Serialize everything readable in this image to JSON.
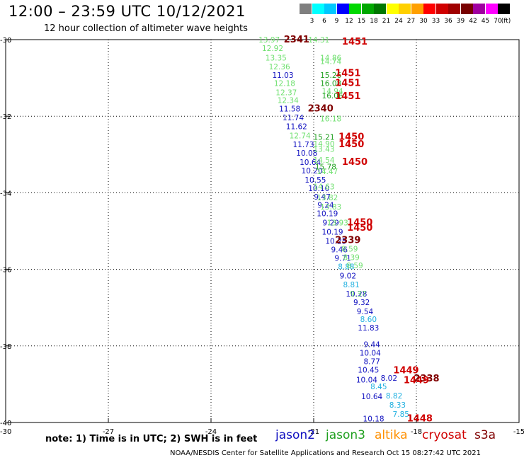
{
  "header": {
    "title": "12:00 – 23:59 UTC 10/12/2021",
    "subtitle": "12 hour collection of altimeter wave heights"
  },
  "colorbar": {
    "unit": "(ft)",
    "items": [
      {
        "label": "",
        "color": "#7f7f7f"
      },
      {
        "label": "3",
        "color": "#00ffff"
      },
      {
        "label": "6",
        "color": "#00c8ff"
      },
      {
        "label": "9",
        "color": "#0000ff"
      },
      {
        "label": "12",
        "color": "#00d800"
      },
      {
        "label": "15",
        "color": "#00a800"
      },
      {
        "label": "18",
        "color": "#007800"
      },
      {
        "label": "21",
        "color": "#ffff00"
      },
      {
        "label": "24",
        "color": "#ffd000"
      },
      {
        "label": "27",
        "color": "#ffa000"
      },
      {
        "label": "30",
        "color": "#ff0000"
      },
      {
        "label": "33",
        "color": "#d00000"
      },
      {
        "label": "36",
        "color": "#a00000"
      },
      {
        "label": "39",
        "color": "#780000"
      },
      {
        "label": "42",
        "color": "#a000a0"
      },
      {
        "label": "45",
        "color": "#ff00ff"
      },
      {
        "label": "70",
        "color": "#000000"
      }
    ]
  },
  "chart_data": {
    "type": "scatter",
    "xlim": [
      -30,
      -15
    ],
    "ylim": [
      -40,
      -30
    ],
    "x_ticks": [
      "-27",
      "-24",
      "-21",
      "-18",
      "-15"
    ],
    "x_tick_values": [
      -27,
      -24,
      -21,
      -18,
      -15
    ],
    "y_ticks": [
      "-30",
      "-32",
      "-34",
      "-36",
      "-38",
      "-40"
    ],
    "y_tick_values": [
      -30,
      -32,
      -34,
      -36,
      -38,
      -40
    ],
    "corner_label": "-30",
    "grid": true,
    "colors": {
      "jason2": "#1010c0",
      "jason3": "#20a020",
      "jason3_light": "#70e070",
      "altika": "#ff9000",
      "cryosat": "#d00000",
      "s3a": "#800000",
      "cyan": "#20b0e0"
    },
    "observations": [
      {
        "text": "13.97",
        "lon": -22.3,
        "lat": -30.0,
        "c": "jason3_light"
      },
      {
        "text": "12.92",
        "lon": -22.2,
        "lat": -30.22,
        "c": "jason3_light"
      },
      {
        "text": "13.35",
        "lon": -22.1,
        "lat": -30.47,
        "c": "jason3_light"
      },
      {
        "text": "12.36",
        "lon": -22.0,
        "lat": -30.7,
        "c": "jason3_light"
      },
      {
        "text": "11.03",
        "lon": -21.9,
        "lat": -30.92,
        "c": "jason2"
      },
      {
        "text": "12.18",
        "lon": -21.85,
        "lat": -31.14,
        "c": "jason3_light"
      },
      {
        "text": "12.37",
        "lon": -21.8,
        "lat": -31.38,
        "c": "jason3_light"
      },
      {
        "text": "12.34",
        "lon": -21.75,
        "lat": -31.58,
        "c": "jason3_light"
      },
      {
        "text": "11.58",
        "lon": -21.7,
        "lat": -31.8,
        "c": "jason2"
      },
      {
        "text": "11.74",
        "lon": -21.6,
        "lat": -32.03,
        "c": "jason2"
      },
      {
        "text": "11.62",
        "lon": -21.5,
        "lat": -32.26,
        "c": "jason2"
      },
      {
        "text": "12.74",
        "lon": -21.4,
        "lat": -32.5,
        "c": "jason3_light"
      },
      {
        "text": "11.73",
        "lon": -21.3,
        "lat": -32.74,
        "c": "jason2"
      },
      {
        "text": "10.08",
        "lon": -21.2,
        "lat": -32.96,
        "c": "jason2"
      },
      {
        "text": "10.64",
        "lon": -21.1,
        "lat": -33.2,
        "c": "jason2"
      },
      {
        "text": "10.20",
        "lon": -21.05,
        "lat": -33.42,
        "c": "jason2"
      },
      {
        "text": "10.55",
        "lon": -20.95,
        "lat": -33.66,
        "c": "jason2"
      },
      {
        "text": "10.10",
        "lon": -20.85,
        "lat": -33.88,
        "c": "jason2"
      },
      {
        "text": "9.47",
        "lon": -20.75,
        "lat": -34.1,
        "c": "jason2"
      },
      {
        "text": "9.24",
        "lon": -20.65,
        "lat": -34.32,
        "c": "jason2"
      },
      {
        "text": "10.19",
        "lon": -20.6,
        "lat": -34.54,
        "c": "jason2"
      },
      {
        "text": "9.29",
        "lon": -20.5,
        "lat": -34.78,
        "c": "jason2"
      },
      {
        "text": "10.19",
        "lon": -20.45,
        "lat": -35.02,
        "c": "jason2"
      },
      {
        "text": "10.25",
        "lon": -20.35,
        "lat": -35.26,
        "c": "jason2"
      },
      {
        "text": "9.46",
        "lon": -20.25,
        "lat": -35.48,
        "c": "jason2"
      },
      {
        "text": "9.71",
        "lon": -20.15,
        "lat": -35.7,
        "c": "jason2"
      },
      {
        "text": "8.88",
        "lon": -20.05,
        "lat": -35.92,
        "c": "cyan"
      },
      {
        "text": "9.02",
        "lon": -20.0,
        "lat": -36.16,
        "c": "jason2"
      },
      {
        "text": "8.81",
        "lon": -19.9,
        "lat": -36.4,
        "c": "cyan"
      },
      {
        "text": "10.28",
        "lon": -19.75,
        "lat": -36.64,
        "c": "jason2"
      },
      {
        "text": "9.32",
        "lon": -19.6,
        "lat": -36.86,
        "c": "jason2"
      },
      {
        "text": "9.54",
        "lon": -19.5,
        "lat": -37.1,
        "c": "jason2"
      },
      {
        "text": "8.60",
        "lon": -19.4,
        "lat": -37.3,
        "c": "cyan"
      },
      {
        "text": "11.83",
        "lon": -19.4,
        "lat": -37.52,
        "c": "jason2"
      },
      {
        "text": "9.44",
        "lon": -19.3,
        "lat": -37.96,
        "c": "jason2"
      },
      {
        "text": "10.04",
        "lon": -19.35,
        "lat": -38.18,
        "c": "jason2"
      },
      {
        "text": "8.77",
        "lon": -19.3,
        "lat": -38.4,
        "c": "jason2"
      },
      {
        "text": "10.45",
        "lon": -19.4,
        "lat": -38.62,
        "c": "jason2"
      },
      {
        "text": "8.02",
        "lon": -18.8,
        "lat": -38.84,
        "c": "jason2"
      },
      {
        "text": "10.04",
        "lon": -19.45,
        "lat": -38.88,
        "c": "jason2"
      },
      {
        "text": "8.45",
        "lon": -19.1,
        "lat": -39.06,
        "c": "cyan"
      },
      {
        "text": "10.64",
        "lon": -19.3,
        "lat": -39.32,
        "c": "jason2"
      },
      {
        "text": "8.82",
        "lon": -18.65,
        "lat": -39.3,
        "c": "cyan"
      },
      {
        "text": "8.33",
        "lon": -18.55,
        "lat": -39.54,
        "c": "cyan"
      },
      {
        "text": "7.85",
        "lon": -18.45,
        "lat": -39.78,
        "c": "cyan"
      },
      {
        "text": "10.18",
        "lon": -19.25,
        "lat": -39.9,
        "c": "jason2"
      },
      {
        "text": "14.31",
        "lon": -20.85,
        "lat": -30.0,
        "c": "jason3_light"
      },
      {
        "text": "14.86",
        "lon": -20.5,
        "lat": -30.47,
        "c": "jason3_light"
      },
      {
        "text": "14.74",
        "lon": -20.5,
        "lat": -30.56,
        "c": "jason3_light"
      },
      {
        "text": "15.26",
        "lon": -20.5,
        "lat": -30.92,
        "c": "jason3"
      },
      {
        "text": "16.08",
        "lon": -20.5,
        "lat": -31.14,
        "c": "jason3"
      },
      {
        "text": "14.94",
        "lon": -20.45,
        "lat": -31.34,
        "c": "jason3_light"
      },
      {
        "text": "16.06",
        "lon": -20.45,
        "lat": -31.46,
        "c": "jason3"
      },
      {
        "text": "16.18",
        "lon": -20.5,
        "lat": -32.06,
        "c": "jason3_light"
      },
      {
        "text": "15.21",
        "lon": -20.7,
        "lat": -32.54,
        "c": "jason3"
      },
      {
        "text": "14.90",
        "lon": -20.7,
        "lat": -32.72,
        "c": "jason3_light"
      },
      {
        "text": "13.43",
        "lon": -20.7,
        "lat": -32.86,
        "c": "jason3_light"
      },
      {
        "text": "14.54",
        "lon": -20.7,
        "lat": -33.14,
        "c": "jason3_light"
      },
      {
        "text": "15.78",
        "lon": -20.65,
        "lat": -33.32,
        "c": "jason3"
      },
      {
        "text": "14.47",
        "lon": -20.6,
        "lat": -33.44,
        "c": "jason3_light"
      },
      {
        "text": "14.63",
        "lon": -20.7,
        "lat": -33.84,
        "c": "jason3_light"
      },
      {
        "text": "13.82",
        "lon": -20.6,
        "lat": -34.12,
        "c": "jason3_light"
      },
      {
        "text": "13.83",
        "lon": -20.5,
        "lat": -34.36,
        "c": "jason3_light"
      },
      {
        "text": "13.93",
        "lon": -20.3,
        "lat": -34.78,
        "c": "jason3_light"
      },
      {
        "text": "8.59",
        "lon": -19.95,
        "lat": -35.46,
        "c": "jason3_light"
      },
      {
        "text": "8.39",
        "lon": -19.9,
        "lat": -35.68,
        "c": "jason3_light"
      },
      {
        "text": "8.59",
        "lon": -19.8,
        "lat": -35.9,
        "c": "jason3_light"
      },
      {
        "text": "9.37",
        "lon": -19.7,
        "lat": -36.64,
        "c": "jason3_light"
      }
    ],
    "pass_labels": [
      {
        "text": "2341",
        "lon": -21.5,
        "lat": -29.98,
        "c": "s3a"
      },
      {
        "text": "1451",
        "lon": -19.8,
        "lat": -30.04,
        "c": "cryosat"
      },
      {
        "text": "1451",
        "lon": -20.0,
        "lat": -30.86,
        "c": "cryosat"
      },
      {
        "text": "1451",
        "lon": -20.0,
        "lat": -31.12,
        "c": "cryosat"
      },
      {
        "text": "1451",
        "lon": -20.0,
        "lat": -31.46,
        "c": "cryosat"
      },
      {
        "text": "2340",
        "lon": -20.8,
        "lat": -31.78,
        "c": "s3a"
      },
      {
        "text": "1450",
        "lon": -19.9,
        "lat": -32.52,
        "c": "cryosat"
      },
      {
        "text": "1450",
        "lon": -19.9,
        "lat": -32.72,
        "c": "cryosat"
      },
      {
        "text": "1450",
        "lon": -19.8,
        "lat": -33.18,
        "c": "cryosat"
      },
      {
        "text": "1450",
        "lon": -19.65,
        "lat": -34.76,
        "c": "cryosat"
      },
      {
        "text": "1450",
        "lon": -19.65,
        "lat": -34.9,
        "c": "cryosat"
      },
      {
        "text": "2339",
        "lon": -20.0,
        "lat": -35.22,
        "c": "s3a"
      },
      {
        "text": "1449",
        "lon": -18.3,
        "lat": -38.62,
        "c": "cryosat"
      },
      {
        "text": "2338",
        "lon": -17.7,
        "lat": -38.84,
        "c": "s3a"
      },
      {
        "text": "1449",
        "lon": -18.0,
        "lat": -38.88,
        "c": "cryosat"
      },
      {
        "text": "1448",
        "lon": -17.9,
        "lat": -39.88,
        "c": "cryosat"
      }
    ]
  },
  "note": "note:  1) Time is in UTC;  2) SWH is in feet",
  "legend": [
    {
      "label": "jason2",
      "color": "#1010c0"
    },
    {
      "label": "jason3",
      "color": "#20a020"
    },
    {
      "label": "altika",
      "color": "#ff9000"
    },
    {
      "label": "cryosat",
      "color": "#d00000"
    },
    {
      "label": "s3a",
      "color": "#800000"
    }
  ],
  "footer": "NOAA/NESDIS Center for Satellite Applications and Research    Oct 15 08:27:42 UTC 2021"
}
